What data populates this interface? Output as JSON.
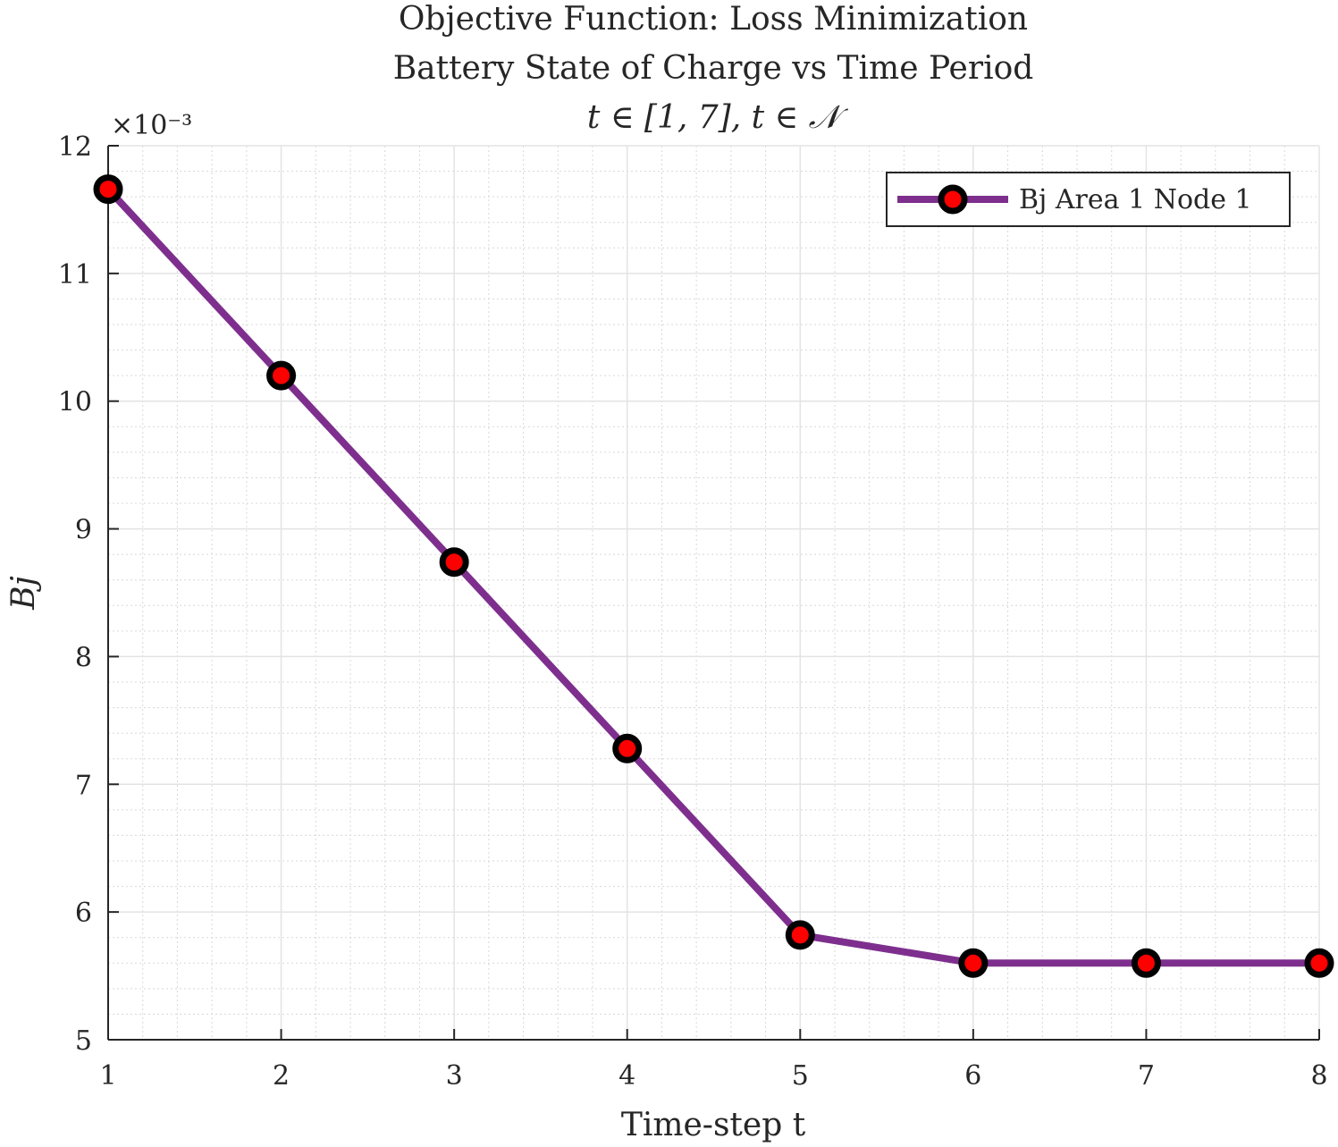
{
  "chart_data": {
    "type": "line",
    "title": [
      "Objective Function: Loss Minimization",
      "Battery State of Charge vs Time Period",
      "t ∈ [1, 7], t ∈ 𝒩"
    ],
    "xlabel": "Time-step t",
    "ylabel": "Bj",
    "y_multiplier": "×10⁻³",
    "x_ticks": [
      1,
      2,
      3,
      4,
      5,
      6,
      7,
      8
    ],
    "y_ticks": [
      5,
      6,
      7,
      8,
      9,
      10,
      11,
      12
    ],
    "xlim": [
      1,
      8
    ],
    "ylim": [
      5,
      12
    ],
    "grid": true,
    "minor_grid": true,
    "legend_position": "top-right",
    "series": [
      {
        "name": "Bj Area 1 Node 1",
        "line_color": "#7E2F8E",
        "marker_edge_color": "#000000",
        "marker_face_color": "#FF0000",
        "x": [
          1,
          2,
          3,
          4,
          5,
          6,
          7,
          8
        ],
        "y": [
          11.66,
          10.2,
          8.74,
          7.28,
          5.82,
          5.6,
          5.6,
          5.6
        ]
      }
    ]
  }
}
